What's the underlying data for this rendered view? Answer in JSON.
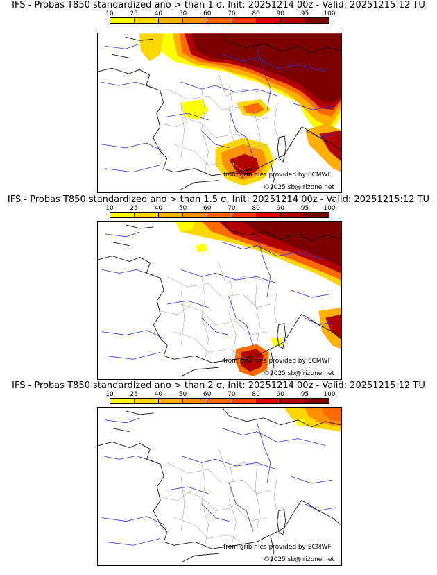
{
  "colorbar": {
    "ticks": [
      "10",
      "25",
      "40",
      "50",
      "60",
      "70",
      "80",
      "90",
      "95",
      "100"
    ],
    "colors": [
      "#ffff00",
      "#ffd700",
      "#ffb000",
      "#ff9000",
      "#ff6a00",
      "#ff3c00",
      "#e00000",
      "#b00000",
      "#7a0000"
    ]
  },
  "credits": {
    "source": "from grib files provided by ECMWF",
    "copyright": "©2025 sb@irizone.net"
  },
  "panels": [
    {
      "title": "IFS - Probas T850  standardized ano > than 1 σ, Init: 20251214 00z - Valid: 20251215:12 TU",
      "coverage": "high"
    },
    {
      "title": "IFS - Probas T850  standardized ano > than 1.5 σ, Init: 20251214 00z - Valid: 20251215:12 TU",
      "coverage": "medium"
    },
    {
      "title": "IFS - Probas T850  standardized ano > than 2 σ, Init: 20251214 00z - Valid: 20251215:12 TU",
      "coverage": "low"
    }
  ]
}
